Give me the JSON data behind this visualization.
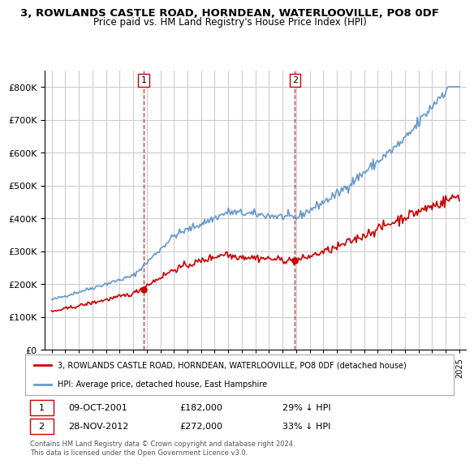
{
  "title": "3, ROWLANDS CASTLE ROAD, HORNDEAN, WATERLOOVILLE, PO8 0DF",
  "subtitle": "Price paid vs. HM Land Registry's House Price Index (HPI)",
  "sale1_date": "09-OCT-2001",
  "sale1_price": 182000,
  "sale1_label": "29% ↓ HPI",
  "sale2_date": "28-NOV-2012",
  "sale2_price": 272000,
  "sale2_label": "33% ↓ HPI",
  "legend_red": "3, ROWLANDS CASTLE ROAD, HORNDEAN, WATERLOOVILLE, PO8 0DF (detached house)",
  "legend_blue": "HPI: Average price, detached house, East Hampshire",
  "footnote": "Contains HM Land Registry data © Crown copyright and database right 2024.\nThis data is licensed under the Open Government Licence v3.0.",
  "sale1_x": 2001.77,
  "sale2_x": 2012.91,
  "ylim": [
    0,
    850000
  ],
  "yticks": [
    0,
    100000,
    200000,
    300000,
    400000,
    500000,
    600000,
    700000,
    800000
  ],
  "bg_color": "#ffffff",
  "grid_color": "#cccccc",
  "red_color": "#cc0000",
  "blue_color": "#6699cc",
  "vline_color": "#cc0000"
}
